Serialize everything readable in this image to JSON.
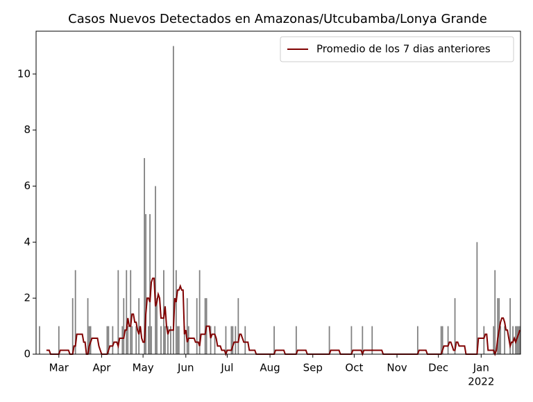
{
  "chart_data": {
    "type": "bar_line",
    "title": "Casos Nuevos Detectados en Amazonas/Utcubamba/Lonya Grande",
    "categories": [
      null,
      null,
      null,
      null,
      null,
      null,
      null,
      null,
      null,
      null,
      null,
      null,
      null,
      null,
      null,
      null,
      "Mar",
      null,
      null,
      null,
      null,
      null,
      null,
      null,
      null,
      null,
      null,
      null,
      null,
      null,
      null,
      null,
      null,
      null,
      null,
      null,
      null,
      null,
      null,
      null,
      null,
      null,
      null,
      null,
      null,
      null,
      null,
      "Apr",
      null,
      null,
      null,
      null,
      null,
      null,
      null,
      null,
      null,
      null,
      null,
      null,
      null,
      null,
      null,
      null,
      null,
      null,
      null,
      null,
      null,
      null,
      null,
      null,
      null,
      null,
      null,
      null,
      null,
      "May",
      null,
      null,
      null,
      null,
      null,
      null,
      null,
      null,
      null,
      null,
      null,
      null,
      null,
      null,
      null,
      null,
      null,
      null,
      null,
      null,
      null,
      null,
      null,
      null,
      null,
      null,
      null,
      null,
      null,
      null,
      "Jun",
      null,
      null,
      null,
      null,
      null,
      null,
      null,
      null,
      null,
      null,
      null,
      null,
      null,
      null,
      null,
      null,
      null,
      null,
      null,
      null,
      null,
      null,
      null,
      null,
      null,
      null,
      null,
      null,
      null,
      "Jul",
      null,
      null,
      null,
      null,
      null,
      null,
      null,
      null,
      null,
      null,
      null,
      null,
      null,
      null,
      null,
      null,
      null,
      null,
      null,
      null,
      null,
      null,
      null,
      null,
      null,
      null,
      null,
      null,
      null,
      null,
      "Aug",
      null,
      null,
      null,
      null,
      null,
      null,
      null,
      null,
      null,
      null,
      null,
      null,
      null,
      null,
      null,
      null,
      null,
      null,
      null,
      null,
      null,
      null,
      null,
      null,
      null,
      null,
      null,
      null,
      null,
      null,
      "Sep",
      null,
      null,
      null,
      null,
      null,
      null,
      null,
      null,
      null,
      null,
      null,
      null,
      null,
      null,
      null,
      null,
      null,
      null,
      null,
      null,
      null,
      null,
      null,
      null,
      null,
      null,
      null,
      null,
      null,
      "Oct",
      null,
      null,
      null,
      null,
      null,
      null,
      null,
      null,
      null,
      null,
      null,
      null,
      null,
      null,
      null,
      null,
      null,
      null,
      null,
      null,
      null,
      null,
      null,
      null,
      null,
      null,
      null,
      null,
      null,
      null,
      "Nov",
      null,
      null,
      null,
      null,
      null,
      null,
      null,
      null,
      null,
      null,
      null,
      null,
      null,
      null,
      null,
      null,
      null,
      null,
      null,
      null,
      null,
      null,
      null,
      null,
      null,
      null,
      null,
      null,
      null,
      "Dec",
      null,
      null,
      null,
      null,
      null,
      null,
      null,
      null,
      null,
      null,
      null,
      null,
      null,
      null,
      null,
      null,
      null,
      null,
      null,
      null,
      null,
      null,
      null,
      null,
      null,
      null,
      null,
      null,
      null,
      null,
      "Jan",
      null,
      null,
      null,
      null,
      null,
      null,
      null,
      null,
      null,
      null,
      null,
      null,
      null,
      null,
      null,
      null,
      null,
      null,
      null,
      null,
      null,
      null,
      null,
      null,
      null,
      null,
      null,
      null
    ],
    "year_label": "2022",
    "series": [
      {
        "name": "Casos",
        "kind": "bar",
        "color": "#808080",
        "values": [
          0,
          0,
          1,
          0,
          0,
          0,
          0,
          0,
          0,
          0,
          0,
          0,
          0,
          0,
          0,
          0,
          1,
          0,
          0,
          0,
          0,
          0,
          0,
          0,
          0,
          0,
          2,
          0,
          3,
          0,
          0,
          0,
          0,
          0,
          0,
          0,
          0,
          2,
          1,
          1,
          0,
          0,
          0,
          0,
          0,
          0,
          0,
          0,
          0,
          0,
          0,
          1,
          1,
          0,
          0,
          1,
          0,
          0,
          0,
          3,
          0,
          0,
          1,
          2,
          0,
          3,
          1,
          0,
          3,
          1,
          0,
          0,
          1,
          0,
          2,
          0,
          0,
          0,
          7,
          5,
          0,
          1,
          5,
          1,
          0,
          0,
          6,
          2,
          0,
          0,
          1,
          0,
          3,
          1,
          0,
          1,
          0,
          1,
          0,
          11,
          0,
          3,
          1,
          1,
          0,
          0,
          0,
          1,
          0,
          2,
          1,
          0,
          0,
          0,
          0,
          0,
          2,
          0,
          3,
          0,
          0,
          0,
          2,
          2,
          0,
          0,
          1,
          0,
          0,
          1,
          0,
          0,
          0,
          0,
          0,
          0,
          0,
          1,
          0,
          0,
          0,
          1,
          1,
          0,
          1,
          0,
          2,
          0,
          0,
          0,
          0,
          1,
          0,
          0,
          0,
          0,
          0,
          0,
          0,
          0,
          0,
          0,
          0,
          0,
          0,
          0,
          0,
          0,
          0,
          0,
          0,
          0,
          1,
          0,
          0,
          0,
          0,
          0,
          0,
          0,
          0,
          0,
          0,
          0,
          0,
          0,
          0,
          0,
          1,
          0,
          0,
          0,
          0,
          0,
          0,
          0,
          0,
          0,
          0,
          0,
          0,
          0,
          0,
          0,
          0,
          0,
          0,
          0,
          0,
          0,
          0,
          0,
          1,
          0,
          0,
          0,
          0,
          0,
          0,
          0,
          0,
          0,
          0,
          0,
          0,
          0,
          0,
          0,
          1,
          0,
          0,
          0,
          0,
          0,
          0,
          0,
          1,
          0,
          0,
          0,
          0,
          0,
          0,
          1,
          0,
          0,
          0,
          0,
          0,
          0,
          0,
          0,
          0,
          0,
          0,
          0,
          0,
          0,
          0,
          0,
          0,
          0,
          0,
          0,
          0,
          0,
          0,
          0,
          0,
          0,
          0,
          0,
          0,
          0,
          0,
          0,
          1,
          0,
          0,
          0,
          0,
          0,
          0,
          0,
          0,
          0,
          0,
          0,
          0,
          0,
          0,
          0,
          0,
          1,
          1,
          0,
          0,
          0,
          1,
          0,
          0,
          0,
          0,
          2,
          0,
          0,
          0,
          0,
          0,
          0,
          0,
          0,
          0,
          0,
          0,
          0,
          0,
          0,
          0,
          4,
          0,
          0,
          0,
          0,
          1,
          0,
          0,
          0,
          0,
          0,
          0,
          1,
          3,
          0,
          2,
          2,
          1,
          0,
          0,
          1,
          0,
          0,
          0,
          2,
          0,
          1,
          0,
          1,
          1,
          1,
          1
        ]
      },
      {
        "name": "Promedio de los 7 dias anteriores",
        "kind": "line",
        "color": "#800000",
        "values": [
          null,
          null,
          null,
          null,
          null,
          null,
          null,
          0.14,
          0.14,
          0.14,
          0,
          0,
          0,
          0,
          0,
          0,
          0,
          0.14,
          0.14,
          0.14,
          0.14,
          0.14,
          0.14,
          0.14,
          0,
          0,
          0,
          0.29,
          0.29,
          0.71,
          0.71,
          0.71,
          0.71,
          0.71,
          0.43,
          0.43,
          0,
          0,
          0.29,
          0.43,
          0.57,
          0.57,
          0.57,
          0.57,
          0.57,
          0.29,
          0.14,
          0,
          0,
          0,
          0,
          0,
          0.14,
          0.29,
          0.29,
          0.29,
          0.43,
          0.43,
          0.43,
          0.29,
          0.57,
          0.57,
          0.57,
          0.57,
          0.86,
          0.86,
          1.29,
          1,
          1,
          1.43,
          1.43,
          1.14,
          1.14,
          0.86,
          0.71,
          1,
          0.57,
          0.43,
          0.43,
          1.43,
          2,
          2,
          1.86,
          2.57,
          2.71,
          2.71,
          1.71,
          1.86,
          2.14,
          2,
          1.29,
          1.29,
          1.29,
          1.71,
          1,
          0.71,
          0.86,
          0.86,
          0.86,
          0.86,
          2,
          1.86,
          2.29,
          2.29,
          2.43,
          2.29,
          2.29,
          0.71,
          0.86,
          0.43,
          0.57,
          0.57,
          0.57,
          0.57,
          0.57,
          0.43,
          0.43,
          0.43,
          0.29,
          0.71,
          0.71,
          0.71,
          0.71,
          1,
          1,
          1,
          0.57,
          0.71,
          0.71,
          0.71,
          0.57,
          0.29,
          0.29,
          0.29,
          0.14,
          0.14,
          0.14,
          0,
          0.14,
          0.14,
          0.14,
          0.14,
          0.29,
          0.43,
          0.43,
          0.43,
          0.43,
          0.71,
          0.71,
          0.57,
          0.43,
          0.43,
          0.43,
          0.43,
          0.14,
          0.14,
          0.14,
          0.14,
          0.14,
          0,
          0,
          0,
          0,
          0,
          0,
          0,
          0,
          0,
          0,
          0,
          0,
          0,
          0,
          0.14,
          0.14,
          0.14,
          0.14,
          0.14,
          0.14,
          0.14,
          0,
          0,
          0,
          0,
          0,
          0,
          0,
          0,
          0,
          0.14,
          0.14,
          0.14,
          0.14,
          0.14,
          0.14,
          0.14,
          0,
          0,
          0,
          0,
          0,
          0,
          0,
          0,
          0,
          0,
          0,
          0,
          0,
          0,
          0,
          0,
          0,
          0.14,
          0.14,
          0.14,
          0.14,
          0.14,
          0.14,
          0.14,
          0,
          0,
          0,
          0,
          0,
          0,
          0,
          0,
          0,
          0.14,
          0.14,
          0.14,
          0.14,
          0.14,
          0.14,
          0.14,
          0,
          0.14,
          0.14,
          0.14,
          0.14,
          0.14,
          0.14,
          0.14,
          0.14,
          0.14,
          0.14,
          0.14,
          0.14,
          0.14,
          0.14,
          0,
          0,
          0,
          0,
          0,
          0,
          0,
          0,
          0,
          0,
          0,
          0,
          0,
          0,
          0,
          0,
          0,
          0,
          0,
          0,
          0,
          0,
          0,
          0,
          0,
          0,
          0.14,
          0.14,
          0.14,
          0.14,
          0.14,
          0.14,
          0,
          0,
          0,
          0,
          0,
          0,
          0,
          0,
          0,
          0,
          0,
          0.14,
          0.29,
          0.29,
          0.29,
          0.29,
          0.43,
          0.43,
          0.29,
          0.14,
          0.14,
          0.43,
          0.43,
          0.29,
          0.29,
          0.29,
          0.29,
          0.29,
          0,
          0,
          0,
          0,
          0,
          0,
          0,
          0,
          0,
          0.57,
          0.57,
          0.57,
          0.57,
          0.57,
          0.71,
          0.71,
          0.14,
          0.14,
          0.14,
          0.14,
          0.14,
          0,
          0.14,
          0.57,
          0.86,
          1.14,
          1.29,
          1.29,
          1.14,
          0.86,
          0.86,
          0.57,
          0.29,
          0.43,
          0.43,
          0.57,
          0.43,
          0.57,
          0.71,
          0.86
        ]
      }
    ],
    "ylim": [
      0,
      11.53
    ],
    "yticks": [
      0,
      2,
      4,
      6,
      8,
      10
    ],
    "grid": false,
    "legend": "upper right"
  }
}
